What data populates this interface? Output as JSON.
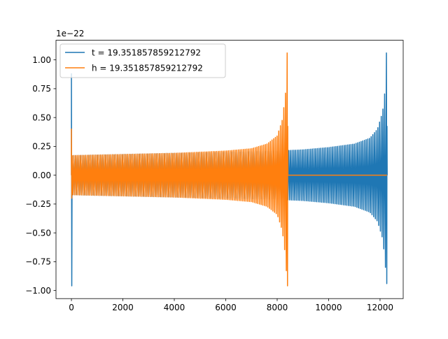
{
  "chart_data": {
    "type": "line",
    "title": "",
    "xlabel": "",
    "ylabel": "",
    "y_offset_label": "1e−22",
    "xlim": [
      -600,
      12900
    ],
    "ylim": [
      -1.07,
      1.17
    ],
    "x_ticks": [
      {
        "value": 0,
        "label": "0"
      },
      {
        "value": 2000,
        "label": "2000"
      },
      {
        "value": 4000,
        "label": "4000"
      },
      {
        "value": 6000,
        "label": "6000"
      },
      {
        "value": 8000,
        "label": "8000"
      },
      {
        "value": 10000,
        "label": "10000"
      },
      {
        "value": 12000,
        "label": "12000"
      }
    ],
    "y_ticks": [
      {
        "value": 1.0,
        "label": "1.00"
      },
      {
        "value": 0.75,
        "label": "0.75"
      },
      {
        "value": 0.5,
        "label": "0.50"
      },
      {
        "value": 0.25,
        "label": "0.25"
      },
      {
        "value": 0.0,
        "label": "0.00"
      },
      {
        "value": -0.25,
        "label": "−0.25"
      },
      {
        "value": -0.5,
        "label": "−0.50"
      },
      {
        "value": -0.75,
        "label": "−0.75"
      },
      {
        "value": -1.0,
        "label": "−1.00"
      }
    ],
    "grid": false,
    "legend_position": "upper-left",
    "series": [
      {
        "name": "t = 19.351857859212792",
        "color": "#1f77b4",
        "x_range": [
          0,
          12270
        ],
        "spike": {
          "x": 0,
          "min": -0.96,
          "max": 0.88
        },
        "envelope": [
          {
            "x": 0,
            "amp": 0.17
          },
          {
            "x": 2000,
            "amp": 0.18
          },
          {
            "x": 4000,
            "amp": 0.19
          },
          {
            "x": 6000,
            "amp": 0.2
          },
          {
            "x": 8000,
            "amp": 0.21
          },
          {
            "x": 9000,
            "amp": 0.22
          },
          {
            "x": 10000,
            "amp": 0.24
          },
          {
            "x": 11000,
            "amp": 0.27
          },
          {
            "x": 11600,
            "amp": 0.32
          },
          {
            "x": 11900,
            "amp": 0.4
          },
          {
            "x": 12100,
            "amp": 0.55
          },
          {
            "x": 12200,
            "amp": 0.75
          },
          {
            "x": 12250,
            "amp": 1.0
          }
        ],
        "end_spike": {
          "x": 12270,
          "min": -0.94,
          "max": 1.06
        }
      },
      {
        "name": "h = 19.351857859212792",
        "color": "#ff7f0e",
        "x_range": [
          0,
          12270
        ],
        "oscillation_end": 8410,
        "flat_value_after": 0.0,
        "spike": {
          "x": 0,
          "min": -0.2,
          "max": 0.4
        },
        "envelope": [
          {
            "x": 0,
            "amp": 0.17
          },
          {
            "x": 2000,
            "amp": 0.18
          },
          {
            "x": 4000,
            "amp": 0.19
          },
          {
            "x": 6000,
            "amp": 0.21
          },
          {
            "x": 7000,
            "amp": 0.23
          },
          {
            "x": 7600,
            "amp": 0.27
          },
          {
            "x": 8000,
            "amp": 0.34
          },
          {
            "x": 8200,
            "amp": 0.48
          },
          {
            "x": 8320,
            "amp": 0.7
          },
          {
            "x": 8390,
            "amp": 0.95
          }
        ],
        "end_spike": {
          "x": 8410,
          "min": -0.96,
          "max": 1.06
        }
      }
    ]
  }
}
